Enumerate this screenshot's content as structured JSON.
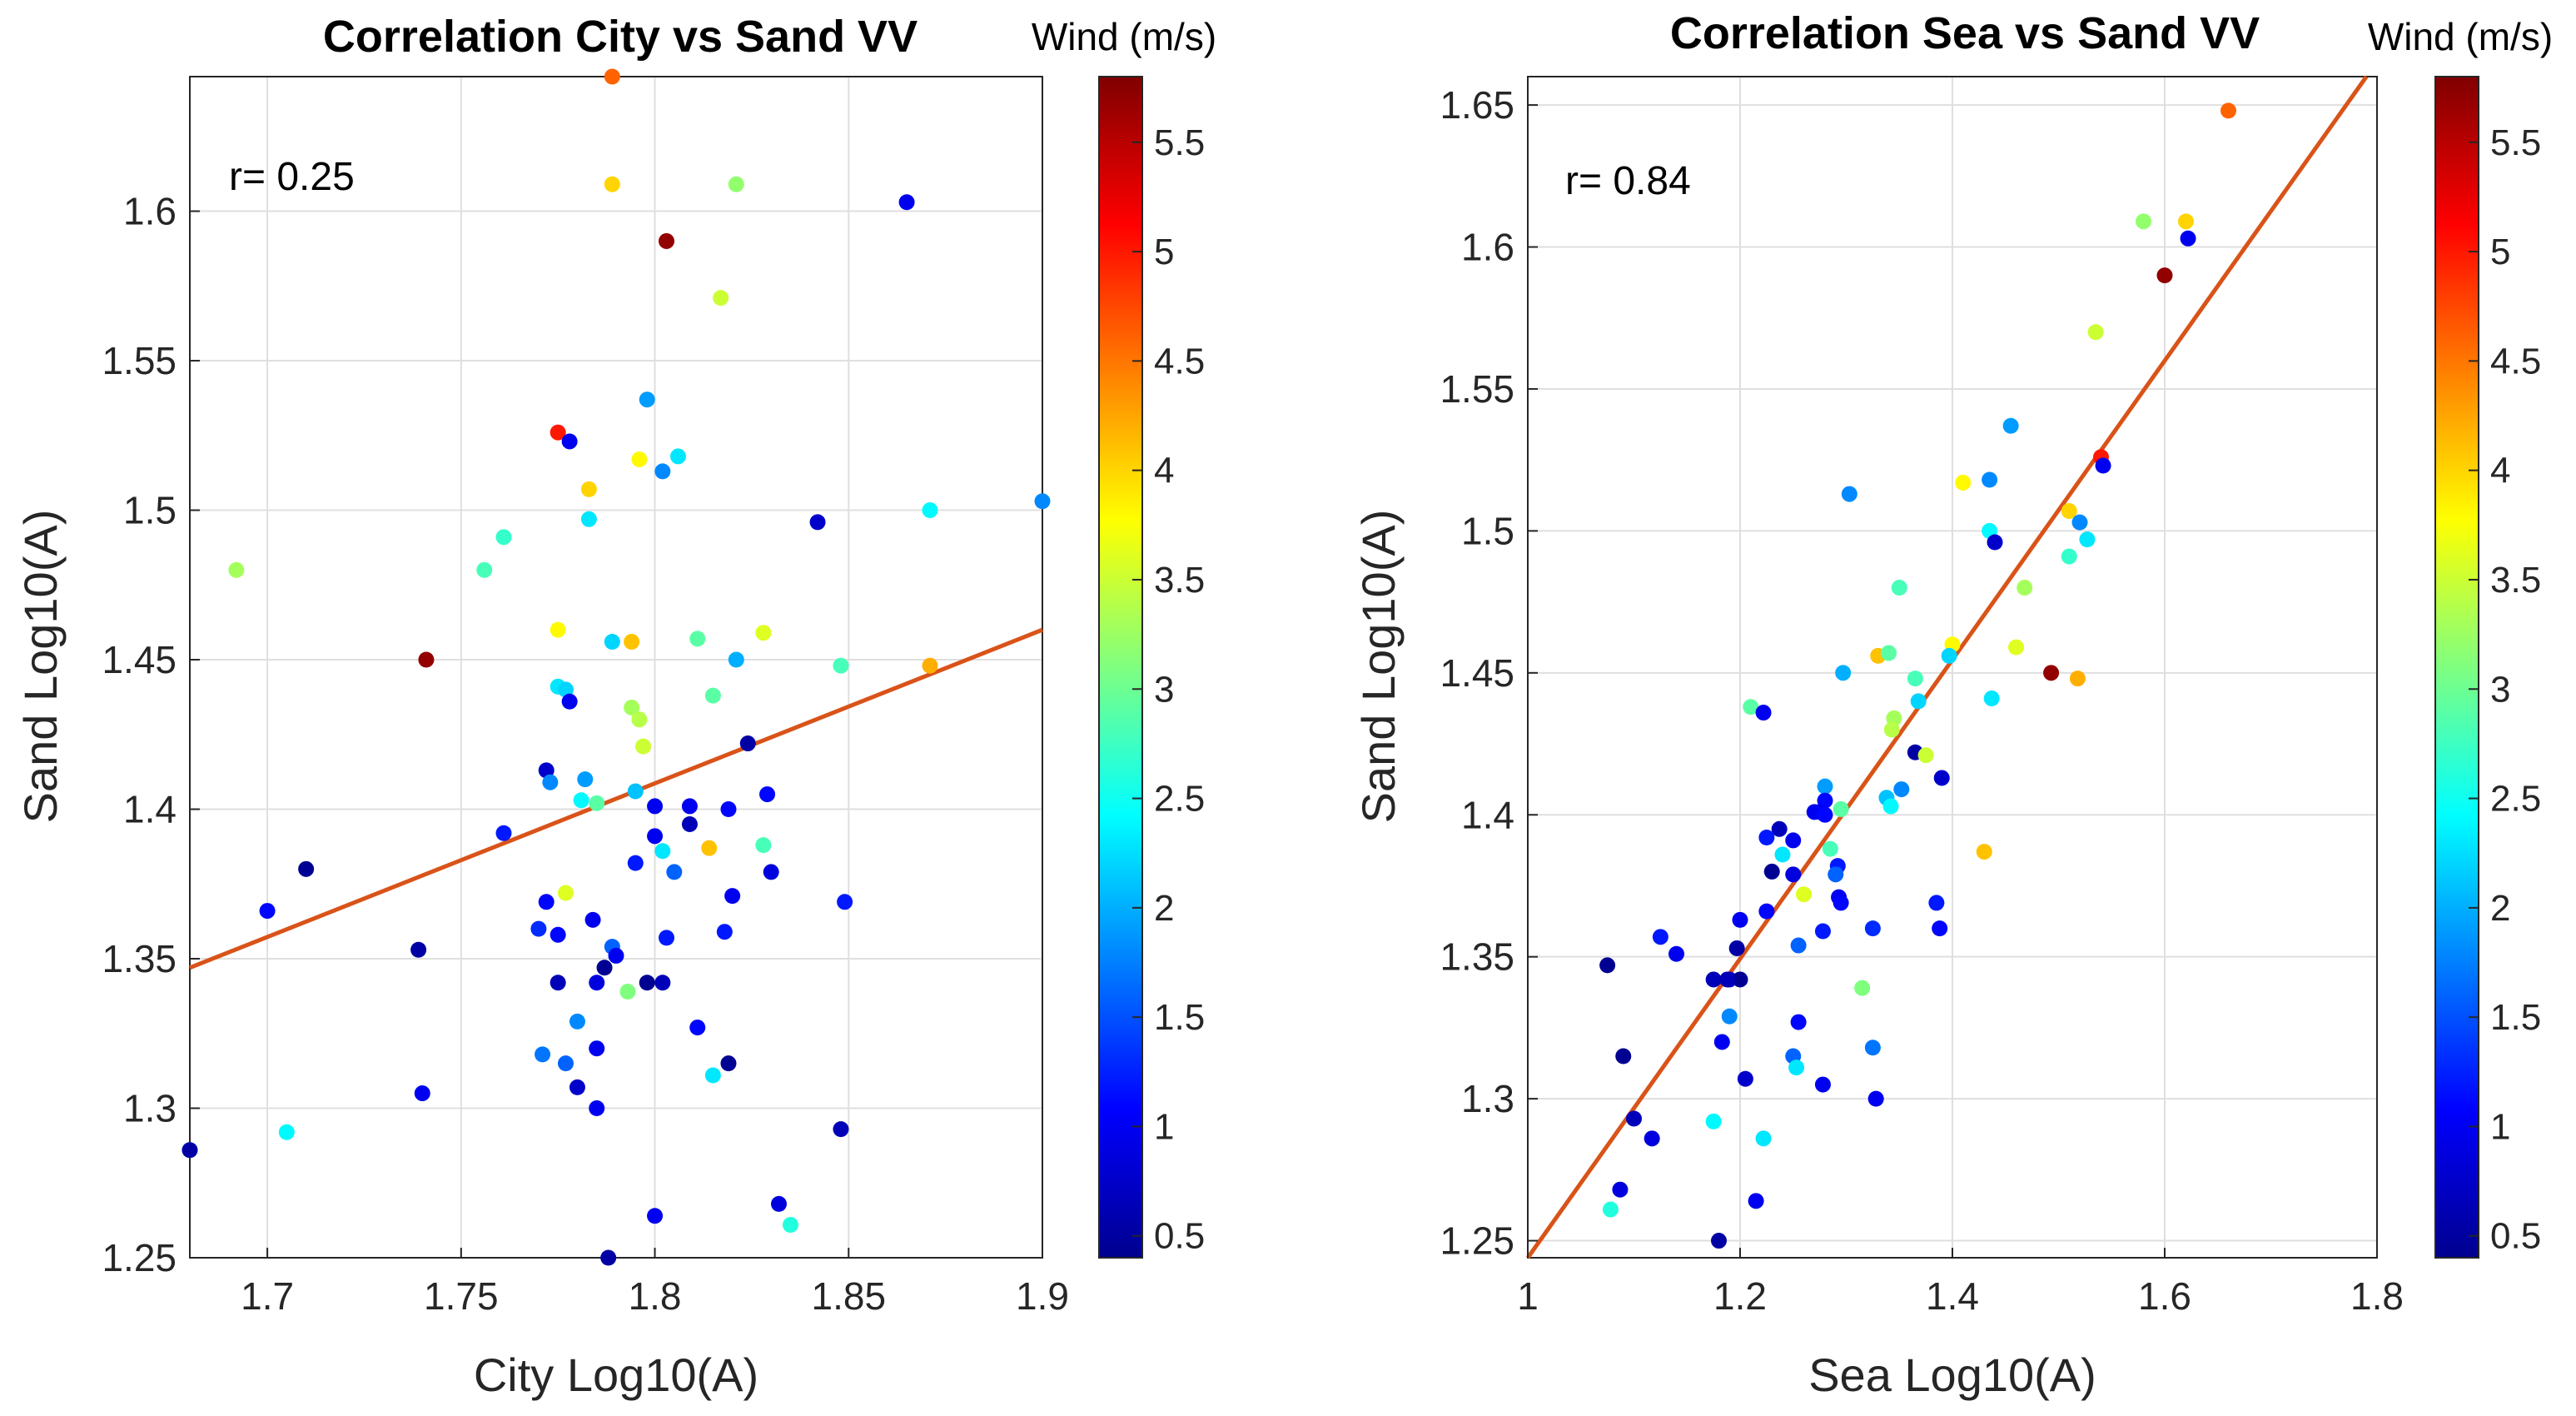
{
  "chart_data": [
    {
      "type": "scatter",
      "title": "Correlation City vs Sand VV",
      "xlabel": "City Log10(A)",
      "ylabel": "Sand Log10(A)",
      "xlim": [
        1.68,
        1.9
      ],
      "ylim": [
        1.25,
        1.645
      ],
      "xticks": [
        1.7,
        1.75,
        1.8,
        1.85,
        1.9
      ],
      "xtick_labels": [
        "1.7",
        "1.75",
        "1.8",
        "1.85",
        "1.9"
      ],
      "yticks": [
        1.25,
        1.3,
        1.35,
        1.4,
        1.45,
        1.5,
        1.55,
        1.6
      ],
      "ytick_labels": [
        "1.25",
        "1.3",
        "1.35",
        "1.4",
        "1.45",
        "1.5",
        "1.55",
        "1.6"
      ],
      "grid": true,
      "annotation": "r= 0.25",
      "fit_line": {
        "x": [
          1.68,
          1.9
        ],
        "y": [
          1.347,
          1.46
        ],
        "color": "#D95319"
      },
      "colorbar": {
        "label": "Wind (m/s)",
        "range": [
          0.4,
          5.8
        ],
        "ticks": [
          0.5,
          1,
          1.5,
          2,
          2.5,
          3,
          3.5,
          4,
          4.5,
          5,
          5.5
        ],
        "tick_labels": [
          "0.5",
          "1",
          "1.5",
          "2",
          "2.5",
          "3",
          "3.5",
          "4",
          "4.5",
          "5",
          "5.5"
        ],
        "colormap": "jet"
      },
      "points": [
        {
          "x": 1.789,
          "y": 1.645,
          "c": 4.6
        },
        {
          "x": 1.789,
          "y": 1.609,
          "c": 4.0
        },
        {
          "x": 1.821,
          "y": 1.609,
          "c": 3.2
        },
        {
          "x": 1.865,
          "y": 1.603,
          "c": 1.0
        },
        {
          "x": 1.803,
          "y": 1.59,
          "c": 5.7
        },
        {
          "x": 1.817,
          "y": 1.571,
          "c": 3.5
        },
        {
          "x": 1.798,
          "y": 1.537,
          "c": 1.9
        },
        {
          "x": 1.775,
          "y": 1.526,
          "c": 5.0
        },
        {
          "x": 1.778,
          "y": 1.523,
          "c": 1.0
        },
        {
          "x": 1.796,
          "y": 1.517,
          "c": 3.8
        },
        {
          "x": 1.806,
          "y": 1.518,
          "c": 2.3
        },
        {
          "x": 1.802,
          "y": 1.513,
          "c": 1.8
        },
        {
          "x": 1.783,
          "y": 1.507,
          "c": 4.0
        },
        {
          "x": 1.9,
          "y": 1.503,
          "c": 1.8
        },
        {
          "x": 1.871,
          "y": 1.5,
          "c": 2.4
        },
        {
          "x": 1.783,
          "y": 1.497,
          "c": 2.3
        },
        {
          "x": 1.842,
          "y": 1.496,
          "c": 0.8
        },
        {
          "x": 1.761,
          "y": 1.491,
          "c": 2.7
        },
        {
          "x": 1.692,
          "y": 1.48,
          "c": 3.3
        },
        {
          "x": 1.756,
          "y": 1.48,
          "c": 2.8
        },
        {
          "x": 1.775,
          "y": 1.46,
          "c": 3.8
        },
        {
          "x": 1.828,
          "y": 1.459,
          "c": 3.6
        },
        {
          "x": 1.789,
          "y": 1.456,
          "c": 2.2
        },
        {
          "x": 1.794,
          "y": 1.456,
          "c": 4.1
        },
        {
          "x": 1.811,
          "y": 1.457,
          "c": 2.9
        },
        {
          "x": 1.741,
          "y": 1.45,
          "c": 5.7
        },
        {
          "x": 1.821,
          "y": 1.45,
          "c": 2.0
        },
        {
          "x": 1.848,
          "y": 1.448,
          "c": 2.8
        },
        {
          "x": 1.871,
          "y": 1.448,
          "c": 4.2
        },
        {
          "x": 1.775,
          "y": 1.441,
          "c": 2.3
        },
        {
          "x": 1.777,
          "y": 1.44,
          "c": 2.2
        },
        {
          "x": 1.815,
          "y": 1.438,
          "c": 2.9
        },
        {
          "x": 1.778,
          "y": 1.436,
          "c": 1.0
        },
        {
          "x": 1.794,
          "y": 1.434,
          "c": 3.3
        },
        {
          "x": 1.796,
          "y": 1.43,
          "c": 3.4
        },
        {
          "x": 1.824,
          "y": 1.422,
          "c": 0.6
        },
        {
          "x": 1.797,
          "y": 1.421,
          "c": 3.5
        },
        {
          "x": 1.772,
          "y": 1.413,
          "c": 0.8
        },
        {
          "x": 1.773,
          "y": 1.409,
          "c": 1.8
        },
        {
          "x": 1.782,
          "y": 1.41,
          "c": 1.9
        },
        {
          "x": 1.795,
          "y": 1.406,
          "c": 2.1
        },
        {
          "x": 1.829,
          "y": 1.405,
          "c": 1.1
        },
        {
          "x": 1.781,
          "y": 1.403,
          "c": 2.4
        },
        {
          "x": 1.785,
          "y": 1.402,
          "c": 2.9
        },
        {
          "x": 1.8,
          "y": 1.401,
          "c": 1.0
        },
        {
          "x": 1.809,
          "y": 1.401,
          "c": 1.0
        },
        {
          "x": 1.819,
          "y": 1.4,
          "c": 1.1
        },
        {
          "x": 1.809,
          "y": 1.395,
          "c": 0.7
        },
        {
          "x": 1.761,
          "y": 1.392,
          "c": 1.2
        },
        {
          "x": 1.8,
          "y": 1.391,
          "c": 1.0
        },
        {
          "x": 1.814,
          "y": 1.387,
          "c": 4.1
        },
        {
          "x": 1.828,
          "y": 1.388,
          "c": 2.8
        },
        {
          "x": 1.802,
          "y": 1.386,
          "c": 2.3
        },
        {
          "x": 1.795,
          "y": 1.382,
          "c": 1.2
        },
        {
          "x": 1.71,
          "y": 1.38,
          "c": 0.5
        },
        {
          "x": 1.805,
          "y": 1.379,
          "c": 1.6
        },
        {
          "x": 1.83,
          "y": 1.379,
          "c": 0.9
        },
        {
          "x": 1.777,
          "y": 1.372,
          "c": 3.6
        },
        {
          "x": 1.82,
          "y": 1.371,
          "c": 1.0
        },
        {
          "x": 1.772,
          "y": 1.369,
          "c": 1.1
        },
        {
          "x": 1.849,
          "y": 1.369,
          "c": 1.2
        },
        {
          "x": 1.7,
          "y": 1.366,
          "c": 1.1
        },
        {
          "x": 1.784,
          "y": 1.363,
          "c": 1.0
        },
        {
          "x": 1.77,
          "y": 1.36,
          "c": 1.3
        },
        {
          "x": 1.818,
          "y": 1.359,
          "c": 1.2
        },
        {
          "x": 1.775,
          "y": 1.358,
          "c": 1.1
        },
        {
          "x": 1.803,
          "y": 1.357,
          "c": 1.2
        },
        {
          "x": 1.789,
          "y": 1.354,
          "c": 1.6
        },
        {
          "x": 1.739,
          "y": 1.353,
          "c": 0.6
        },
        {
          "x": 1.79,
          "y": 1.351,
          "c": 1.0
        },
        {
          "x": 1.787,
          "y": 1.347,
          "c": 0.5
        },
        {
          "x": 1.775,
          "y": 1.342,
          "c": 0.7
        },
        {
          "x": 1.785,
          "y": 1.342,
          "c": 0.9
        },
        {
          "x": 1.798,
          "y": 1.342,
          "c": 0.5
        },
        {
          "x": 1.802,
          "y": 1.342,
          "c": 0.7
        },
        {
          "x": 1.793,
          "y": 1.339,
          "c": 3.1
        },
        {
          "x": 1.78,
          "y": 1.329,
          "c": 1.8
        },
        {
          "x": 1.811,
          "y": 1.327,
          "c": 1.1
        },
        {
          "x": 1.785,
          "y": 1.32,
          "c": 1.0
        },
        {
          "x": 1.771,
          "y": 1.318,
          "c": 1.7
        },
        {
          "x": 1.777,
          "y": 1.315,
          "c": 1.6
        },
        {
          "x": 1.819,
          "y": 1.315,
          "c": 0.5
        },
        {
          "x": 1.815,
          "y": 1.311,
          "c": 2.3
        },
        {
          "x": 1.78,
          "y": 1.307,
          "c": 0.8
        },
        {
          "x": 1.74,
          "y": 1.305,
          "c": 1.0
        },
        {
          "x": 1.785,
          "y": 1.3,
          "c": 1.0
        },
        {
          "x": 1.705,
          "y": 1.292,
          "c": 2.4
        },
        {
          "x": 1.848,
          "y": 1.293,
          "c": 0.7
        },
        {
          "x": 1.68,
          "y": 1.286,
          "c": 2.3
        },
        {
          "x": 1.68,
          "y": 1.286,
          "c": 0.6
        },
        {
          "x": 1.832,
          "y": 1.268,
          "c": 0.9
        },
        {
          "x": 1.835,
          "y": 1.261,
          "c": 2.6
        },
        {
          "x": 1.8,
          "y": 1.264,
          "c": 1.0
        },
        {
          "x": 1.788,
          "y": 1.25,
          "c": 0.6
        }
      ]
    },
    {
      "type": "scatter",
      "title": "Correlation Sea vs Sand VV",
      "xlabel": "Sea Log10(A)",
      "ylabel": "Sand Log10(A)",
      "xlim": [
        1.0,
        1.8
      ],
      "ylim": [
        1.244,
        1.66
      ],
      "xticks": [
        1.0,
        1.2,
        1.4,
        1.6,
        1.8
      ],
      "xtick_labels": [
        "1",
        "1.2",
        "1.4",
        "1.6",
        "1.8"
      ],
      "yticks": [
        1.25,
        1.3,
        1.35,
        1.4,
        1.45,
        1.5,
        1.55,
        1.6,
        1.65
      ],
      "ytick_labels": [
        "1.25",
        "1.3",
        "1.35",
        "1.4",
        "1.45",
        "1.5",
        "1.55",
        "1.6",
        "1.65"
      ],
      "grid": true,
      "annotation": "r= 0.84",
      "fit_line": {
        "x": [
          1.0,
          1.79
        ],
        "y": [
          1.244,
          1.66
        ],
        "color": "#D95319"
      },
      "colorbar": {
        "label": "Wind (m/s)",
        "range": [
          0.4,
          5.8
        ],
        "ticks": [
          0.5,
          1,
          1.5,
          2,
          2.5,
          3,
          3.5,
          4,
          4.5,
          5,
          5.5
        ],
        "tick_labels": [
          "0.5",
          "1",
          "1.5",
          "2",
          "2.5",
          "3",
          "3.5",
          "4",
          "4.5",
          "5",
          "5.5"
        ],
        "colormap": "jet"
      },
      "points": [
        {
          "x": 1.66,
          "y": 1.648,
          "c": 4.6
        },
        {
          "x": 1.58,
          "y": 1.609,
          "c": 3.2
        },
        {
          "x": 1.62,
          "y": 1.609,
          "c": 4.0
        },
        {
          "x": 1.6,
          "y": 1.59,
          "c": 5.7
        },
        {
          "x": 1.622,
          "y": 1.603,
          "c": 1.0
        },
        {
          "x": 1.535,
          "y": 1.57,
          "c": 3.5
        },
        {
          "x": 1.455,
          "y": 1.537,
          "c": 1.9
        },
        {
          "x": 1.54,
          "y": 1.526,
          "c": 5.0
        },
        {
          "x": 1.542,
          "y": 1.523,
          "c": 1.0
        },
        {
          "x": 1.41,
          "y": 1.517,
          "c": 3.8
        },
        {
          "x": 1.435,
          "y": 1.518,
          "c": 1.8
        },
        {
          "x": 1.303,
          "y": 1.513,
          "c": 1.8
        },
        {
          "x": 1.51,
          "y": 1.507,
          "c": 4.0
        },
        {
          "x": 1.52,
          "y": 1.503,
          "c": 1.8
        },
        {
          "x": 1.435,
          "y": 1.5,
          "c": 2.4
        },
        {
          "x": 1.527,
          "y": 1.497,
          "c": 2.3
        },
        {
          "x": 1.44,
          "y": 1.496,
          "c": 0.8
        },
        {
          "x": 1.51,
          "y": 1.491,
          "c": 2.7
        },
        {
          "x": 1.35,
          "y": 1.48,
          "c": 2.8
        },
        {
          "x": 1.468,
          "y": 1.48,
          "c": 3.3
        },
        {
          "x": 1.4,
          "y": 1.46,
          "c": 3.8
        },
        {
          "x": 1.46,
          "y": 1.459,
          "c": 3.6
        },
        {
          "x": 1.397,
          "y": 1.456,
          "c": 2.2
        },
        {
          "x": 1.33,
          "y": 1.456,
          "c": 4.1
        },
        {
          "x": 1.34,
          "y": 1.457,
          "c": 2.9
        },
        {
          "x": 1.493,
          "y": 1.45,
          "c": 5.7
        },
        {
          "x": 1.297,
          "y": 1.45,
          "c": 2.0
        },
        {
          "x": 1.365,
          "y": 1.448,
          "c": 2.8
        },
        {
          "x": 1.518,
          "y": 1.448,
          "c": 4.2
        },
        {
          "x": 1.437,
          "y": 1.441,
          "c": 2.3
        },
        {
          "x": 1.368,
          "y": 1.44,
          "c": 2.2
        },
        {
          "x": 1.21,
          "y": 1.438,
          "c": 2.9
        },
        {
          "x": 1.222,
          "y": 1.436,
          "c": 1.0
        },
        {
          "x": 1.345,
          "y": 1.434,
          "c": 3.3
        },
        {
          "x": 1.343,
          "y": 1.43,
          "c": 3.4
        },
        {
          "x": 1.365,
          "y": 1.422,
          "c": 0.6
        },
        {
          "x": 1.375,
          "y": 1.421,
          "c": 3.5
        },
        {
          "x": 1.39,
          "y": 1.413,
          "c": 0.8
        },
        {
          "x": 1.352,
          "y": 1.409,
          "c": 1.8
        },
        {
          "x": 1.28,
          "y": 1.41,
          "c": 1.9
        },
        {
          "x": 1.338,
          "y": 1.406,
          "c": 2.1
        },
        {
          "x": 1.28,
          "y": 1.405,
          "c": 1.1
        },
        {
          "x": 1.342,
          "y": 1.403,
          "c": 2.4
        },
        {
          "x": 1.295,
          "y": 1.402,
          "c": 2.9
        },
        {
          "x": 1.27,
          "y": 1.401,
          "c": 1.0
        },
        {
          "x": 1.275,
          "y": 1.401,
          "c": 1.0
        },
        {
          "x": 1.28,
          "y": 1.4,
          "c": 1.1
        },
        {
          "x": 1.237,
          "y": 1.395,
          "c": 0.7
        },
        {
          "x": 1.225,
          "y": 1.392,
          "c": 1.2
        },
        {
          "x": 1.25,
          "y": 1.391,
          "c": 1.0
        },
        {
          "x": 1.43,
          "y": 1.387,
          "c": 4.1
        },
        {
          "x": 1.285,
          "y": 1.388,
          "c": 2.8
        },
        {
          "x": 1.24,
          "y": 1.386,
          "c": 2.3
        },
        {
          "x": 1.292,
          "y": 1.382,
          "c": 1.2
        },
        {
          "x": 1.23,
          "y": 1.38,
          "c": 0.5
        },
        {
          "x": 1.29,
          "y": 1.379,
          "c": 1.6
        },
        {
          "x": 1.25,
          "y": 1.379,
          "c": 0.9
        },
        {
          "x": 1.26,
          "y": 1.372,
          "c": 3.6
        },
        {
          "x": 1.293,
          "y": 1.371,
          "c": 1.0
        },
        {
          "x": 1.295,
          "y": 1.369,
          "c": 1.1
        },
        {
          "x": 1.385,
          "y": 1.369,
          "c": 1.2
        },
        {
          "x": 1.225,
          "y": 1.366,
          "c": 1.1
        },
        {
          "x": 1.2,
          "y": 1.363,
          "c": 1.0
        },
        {
          "x": 1.325,
          "y": 1.36,
          "c": 1.3
        },
        {
          "x": 1.278,
          "y": 1.359,
          "c": 1.2
        },
        {
          "x": 1.388,
          "y": 1.36,
          "c": 1.1
        },
        {
          "x": 1.125,
          "y": 1.357,
          "c": 1.2
        },
        {
          "x": 1.255,
          "y": 1.354,
          "c": 1.6
        },
        {
          "x": 1.197,
          "y": 1.353,
          "c": 0.6
        },
        {
          "x": 1.14,
          "y": 1.351,
          "c": 1.0
        },
        {
          "x": 1.075,
          "y": 1.347,
          "c": 0.5
        },
        {
          "x": 1.175,
          "y": 1.342,
          "c": 0.7
        },
        {
          "x": 1.19,
          "y": 1.342,
          "c": 0.9
        },
        {
          "x": 1.2,
          "y": 1.342,
          "c": 0.5
        },
        {
          "x": 1.188,
          "y": 1.342,
          "c": 0.7
        },
        {
          "x": 1.315,
          "y": 1.339,
          "c": 3.1
        },
        {
          "x": 1.19,
          "y": 1.329,
          "c": 1.8
        },
        {
          "x": 1.255,
          "y": 1.327,
          "c": 1.1
        },
        {
          "x": 1.183,
          "y": 1.32,
          "c": 1.0
        },
        {
          "x": 1.325,
          "y": 1.318,
          "c": 1.7
        },
        {
          "x": 1.25,
          "y": 1.315,
          "c": 1.6
        },
        {
          "x": 1.09,
          "y": 1.315,
          "c": 0.5
        },
        {
          "x": 1.253,
          "y": 1.311,
          "c": 2.3
        },
        {
          "x": 1.205,
          "y": 1.307,
          "c": 0.8
        },
        {
          "x": 1.278,
          "y": 1.305,
          "c": 1.0
        },
        {
          "x": 1.328,
          "y": 1.3,
          "c": 1.0
        },
        {
          "x": 1.175,
          "y": 1.292,
          "c": 2.4
        },
        {
          "x": 1.1,
          "y": 1.293,
          "c": 0.7
        },
        {
          "x": 1.222,
          "y": 1.286,
          "c": 2.3
        },
        {
          "x": 1.117,
          "y": 1.286,
          "c": 0.9
        },
        {
          "x": 1.087,
          "y": 1.268,
          "c": 0.9
        },
        {
          "x": 1.078,
          "y": 1.261,
          "c": 2.6
        },
        {
          "x": 1.215,
          "y": 1.264,
          "c": 1.0
        },
        {
          "x": 1.18,
          "y": 1.25,
          "c": 0.6
        }
      ]
    }
  ]
}
